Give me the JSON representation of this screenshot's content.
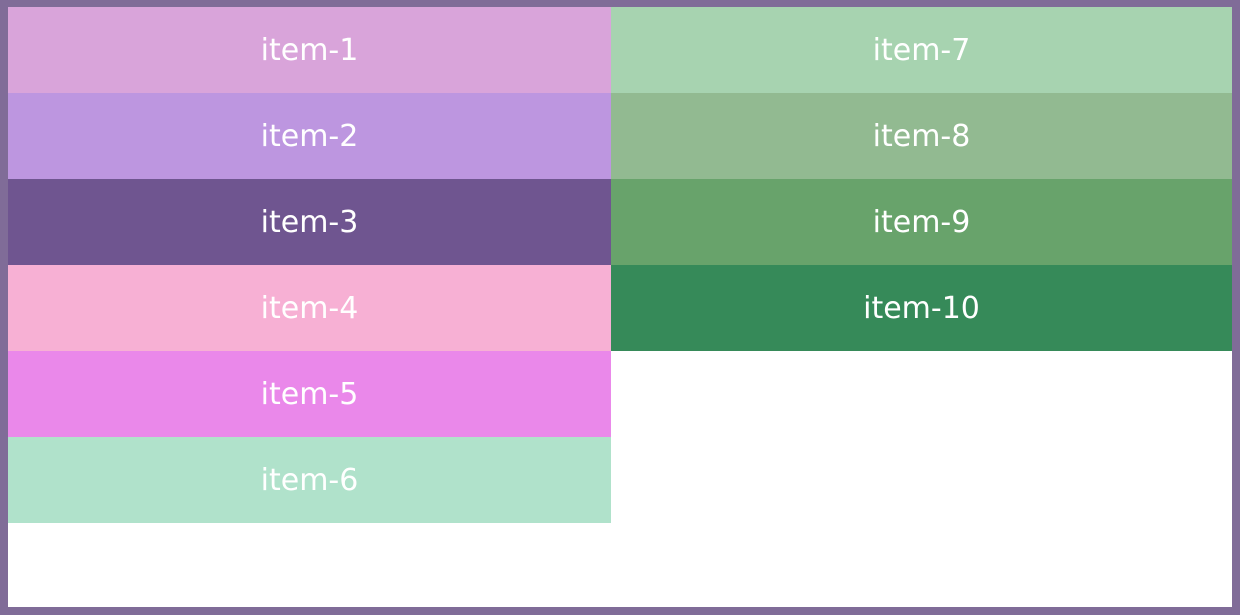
{
  "columns": [
    {
      "items": [
        {
          "label": "item-1",
          "color": "#d9a4da"
        },
        {
          "label": "item-2",
          "color": "#bd96e0"
        },
        {
          "label": "item-3",
          "color": "#6f5590"
        },
        {
          "label": "item-4",
          "color": "#f7b0d4"
        },
        {
          "label": "item-5",
          "color": "#ea88ea"
        },
        {
          "label": "item-6",
          "color": "#b0e2cb"
        }
      ]
    },
    {
      "items": [
        {
          "label": "item-7",
          "color": "#a7d3b0"
        },
        {
          "label": "item-8",
          "color": "#92ba91"
        },
        {
          "label": "item-9",
          "color": "#68a36b"
        },
        {
          "label": "item-10",
          "color": "#368a59"
        }
      ]
    }
  ],
  "border_color": "#806c98"
}
